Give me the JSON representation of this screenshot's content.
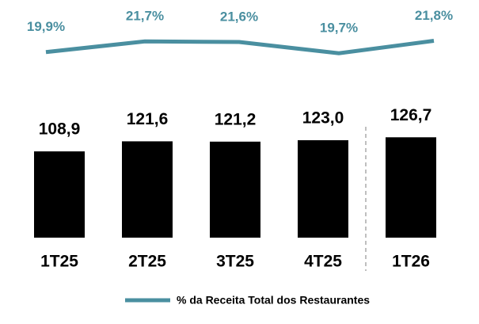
{
  "chart_data": {
    "type": "bar-line",
    "categories": [
      "1T25",
      "2T25",
      "3T25",
      "4T25",
      "1T26"
    ],
    "values": [
      108.9,
      121.6,
      121.2,
      123.0,
      126.7
    ],
    "value_labels": [
      "108,9",
      "121,6",
      "121,2",
      "123,0",
      "126,7"
    ],
    "color": "#000000",
    "series": [
      {
        "name": "% da Receita Total dos Restaurantes",
        "color": "#4a8fa0",
        "values": [
          19.9,
          21.7,
          21.6,
          19.7,
          21.8
        ],
        "value_labels": [
          "19,9%",
          "21,7%",
          "21,6%",
          "19,7%",
          "21,8%"
        ]
      }
    ],
    "legend": "bottom"
  }
}
